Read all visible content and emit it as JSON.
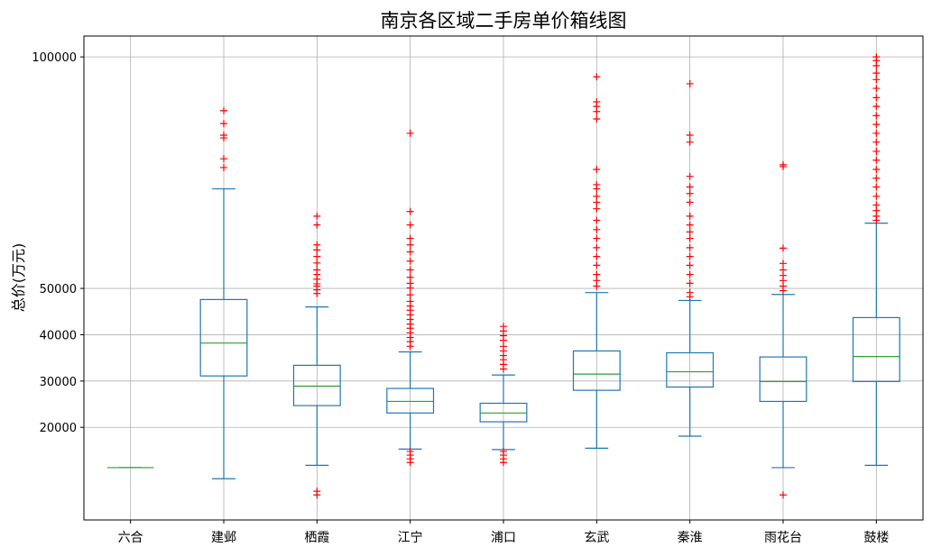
{
  "chart_data": {
    "type": "box",
    "title": "南京各区域二手房单价箱线图",
    "xlabel": "",
    "ylabel": "总价(万元)",
    "ylim": [
      0,
      104500
    ],
    "yticks": [
      20000,
      30000,
      40000,
      50000,
      100000
    ],
    "grid": true,
    "colors": {
      "box": "#1f77b4",
      "median": "#2ca02c",
      "outlier": "#ff0000",
      "grid": "#b0b0b0"
    },
    "categories": [
      "六合",
      "建邺",
      "栖霞",
      "江宁",
      "浦口",
      "玄武",
      "秦淮",
      "雨花台",
      "鼓楼"
    ],
    "boxes": [
      {
        "name": "六合",
        "whislo": 11300,
        "q1": 11300,
        "med": 11300,
        "q3": 11300,
        "whishi": 11300,
        "fliers": []
      },
      {
        "name": "建邺",
        "whislo": 8900,
        "q1": 31100,
        "med": 38200,
        "q3": 47600,
        "whishi": 71500,
        "fliers": [
          88400,
          85600,
          83100,
          82500,
          78000,
          76100
        ]
      },
      {
        "name": "栖霞",
        "whislo": 11800,
        "q1": 24700,
        "med": 28900,
        "q3": 33400,
        "whishi": 46000,
        "fliers": [
          65600,
          63700,
          59400,
          58300,
          56900,
          55500,
          54000,
          53000,
          52000,
          51000,
          50500,
          49700,
          48900,
          6200,
          5400
        ]
      },
      {
        "name": "江宁",
        "whislo": 15300,
        "q1": 23100,
        "med": 25600,
        "q3": 28400,
        "whishi": 36300,
        "fliers": [
          83500,
          66600,
          63700,
          60800,
          59400,
          57900,
          55900,
          54000,
          52400,
          51100,
          50100,
          48600,
          47200,
          46200,
          45300,
          44300,
          43300,
          42300,
          41400,
          40400,
          39400,
          38500,
          37500,
          14800,
          14000,
          13200,
          12400
        ]
      },
      {
        "name": "浦口",
        "whislo": 15200,
        "q1": 21200,
        "med": 23100,
        "q3": 25200,
        "whishi": 31300,
        "fliers": [
          41800,
          40800,
          39800,
          38800,
          37500,
          36500,
          35500,
          34600,
          33600,
          32600,
          14800,
          14000,
          13200,
          12400
        ]
      },
      {
        "name": "玄武",
        "whislo": 15500,
        "q1": 28000,
        "med": 31500,
        "q3": 36500,
        "whishi": 49100,
        "fliers": [
          95700,
          90300,
          89300,
          88200,
          86600,
          75700,
          72400,
          71500,
          69900,
          68600,
          67200,
          64700,
          62700,
          60800,
          58800,
          56900,
          55000,
          53000,
          51700,
          50500
        ]
      },
      {
        "name": "秦淮",
        "whislo": 18100,
        "q1": 28700,
        "med": 32000,
        "q3": 36100,
        "whishi": 47400,
        "fliers": [
          94200,
          83100,
          81600,
          74200,
          71900,
          70500,
          68600,
          65600,
          63700,
          62200,
          60800,
          58800,
          56900,
          55000,
          53000,
          51100,
          49100,
          48200
        ]
      },
      {
        "name": "雨花台",
        "whislo": 11300,
        "q1": 25600,
        "med": 29900,
        "q3": 35200,
        "whishi": 48700,
        "fliers": [
          76700,
          76300,
          58700,
          55400,
          54000,
          52800,
          51700,
          50500,
          49500,
          5400
        ]
      },
      {
        "name": "鼓楼",
        "whislo": 11800,
        "q1": 29900,
        "med": 35300,
        "q3": 43700,
        "whishi": 64100,
        "fliers": [
          100000,
          99200,
          98100,
          96500,
          95100,
          93200,
          91200,
          89300,
          87300,
          85400,
          83500,
          81600,
          79600,
          77700,
          75700,
          73800,
          71900,
          69900,
          68000,
          66800,
          65600,
          64700
        ]
      }
    ]
  }
}
